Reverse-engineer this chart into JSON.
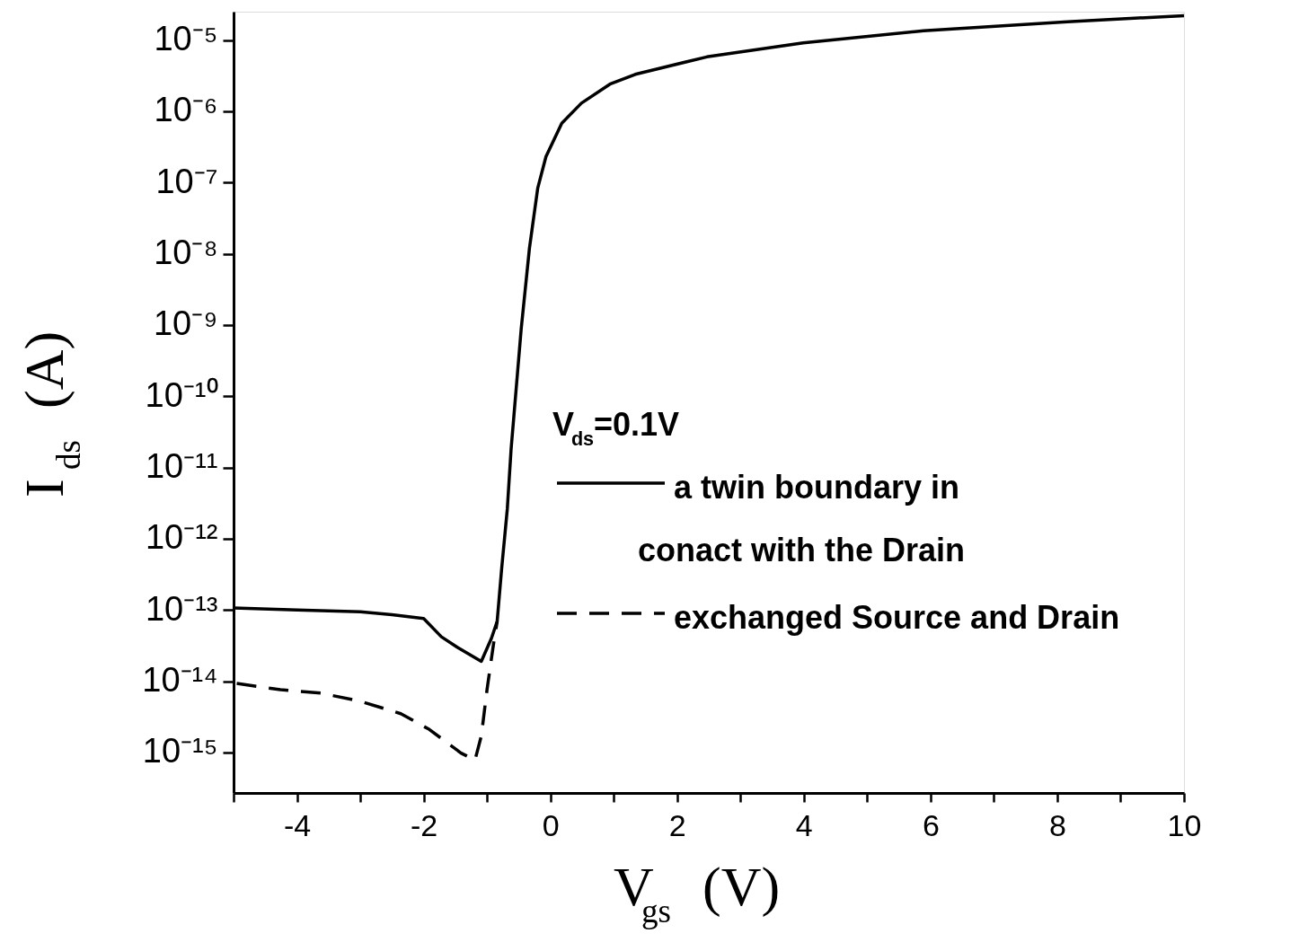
{
  "chart_data": {
    "type": "line",
    "xlabel": "V$_{gs}$ (V)",
    "ylabel": "I$_{ds}$ (A)",
    "legend_title": "V$_{ds}$=0.1V",
    "legend": "right",
    "log": true,
    "grid": false,
    "xlim": [
      -5,
      10
    ],
    "ylim": [
      2.7e-16,
      2.5e-05
    ],
    "xticks": [
      {
        "value": -5,
        "label": null
      },
      -4,
      {
        "value": -3,
        "label": null
      },
      -2,
      {
        "value": -1,
        "label": null
      },
      0,
      {
        "value": 1,
        "label": null
      },
      2,
      {
        "value": 3,
        "label": null
      },
      4,
      {
        "value": 5,
        "label": null
      },
      6,
      {
        "value": 7,
        "label": null
      },
      8,
      {
        "value": 9,
        "label": null
      },
      10
    ],
    "yticks": [
      {
        "value": 1e-05,
        "label": "10⁻⁵"
      },
      {
        "value": 1e-06,
        "label": "10⁻⁶"
      },
      {
        "value": 1e-07,
        "label": "10⁻⁷"
      },
      {
        "value": 1e-08,
        "label": "10⁻⁸"
      },
      {
        "value": 1e-09,
        "label": "10⁻⁹"
      },
      {
        "value": 1e-10,
        "label": "10⁻¹⁰"
      },
      {
        "value": 1e-11,
        "label": "10⁻¹¹"
      },
      {
        "value": 1e-12,
        "label": "10⁻¹²"
      },
      {
        "value": 1e-13,
        "label": "10⁻¹³"
      },
      {
        "value": 1e-14,
        "label": "10⁻¹⁴"
      },
      {
        "value": 1e-15,
        "label": "10⁻¹⁵"
      }
    ],
    "series": [
      {
        "name": "a twin boundary in\nconact with the Drain",
        "color": "#000000",
        "line_style": "solid",
        "x": [
          -5,
          -4,
          -3,
          -2.5,
          -2,
          -1.72,
          -1.47,
          -1.09,
          -0.93,
          -0.84,
          -0.77,
          -0.68,
          -0.62,
          -0.46,
          -0.33,
          -0.2,
          -0.07,
          0.18,
          0.49,
          0.94,
          1.34,
          2.47,
          3.99,
          5.89,
          8.16,
          10
        ],
        "values": [
          1.07e-13,
          1e-13,
          9.4e-14,
          8.6e-14,
          7.6e-14,
          4.2e-14,
          3e-14,
          1.9e-14,
          4e-14,
          6.9e-14,
          3.7e-13,
          2.6e-12,
          1.8e-11,
          8.9e-10,
          1.2e-08,
          8.3e-08,
          2.3e-07,
          6.8e-07,
          1.3e-06,
          2.4e-06,
          3.3e-06,
          5.8e-06,
          9.1e-06,
          1.35e-05,
          1.8e-05,
          2.2e-05
        ]
      },
      {
        "name": "exchanged Source and Drain",
        "color": "#000000",
        "line_style": "dashed",
        "x": [
          -4.95,
          -4.26,
          -3.62,
          -2.99,
          -2.36,
          -1.91,
          -1.41,
          -1.19,
          -1.09,
          -1.0,
          -0.9,
          -0.84
        ],
        "values": [
          9.3e-15,
          7.6e-15,
          6.8e-15,
          5.2e-15,
          3.5e-15,
          2.1e-15,
          9.8e-16,
          7.8e-16,
          1.7e-15,
          7.6e-15,
          3.2e-14,
          6.9e-14
        ]
      }
    ]
  }
}
